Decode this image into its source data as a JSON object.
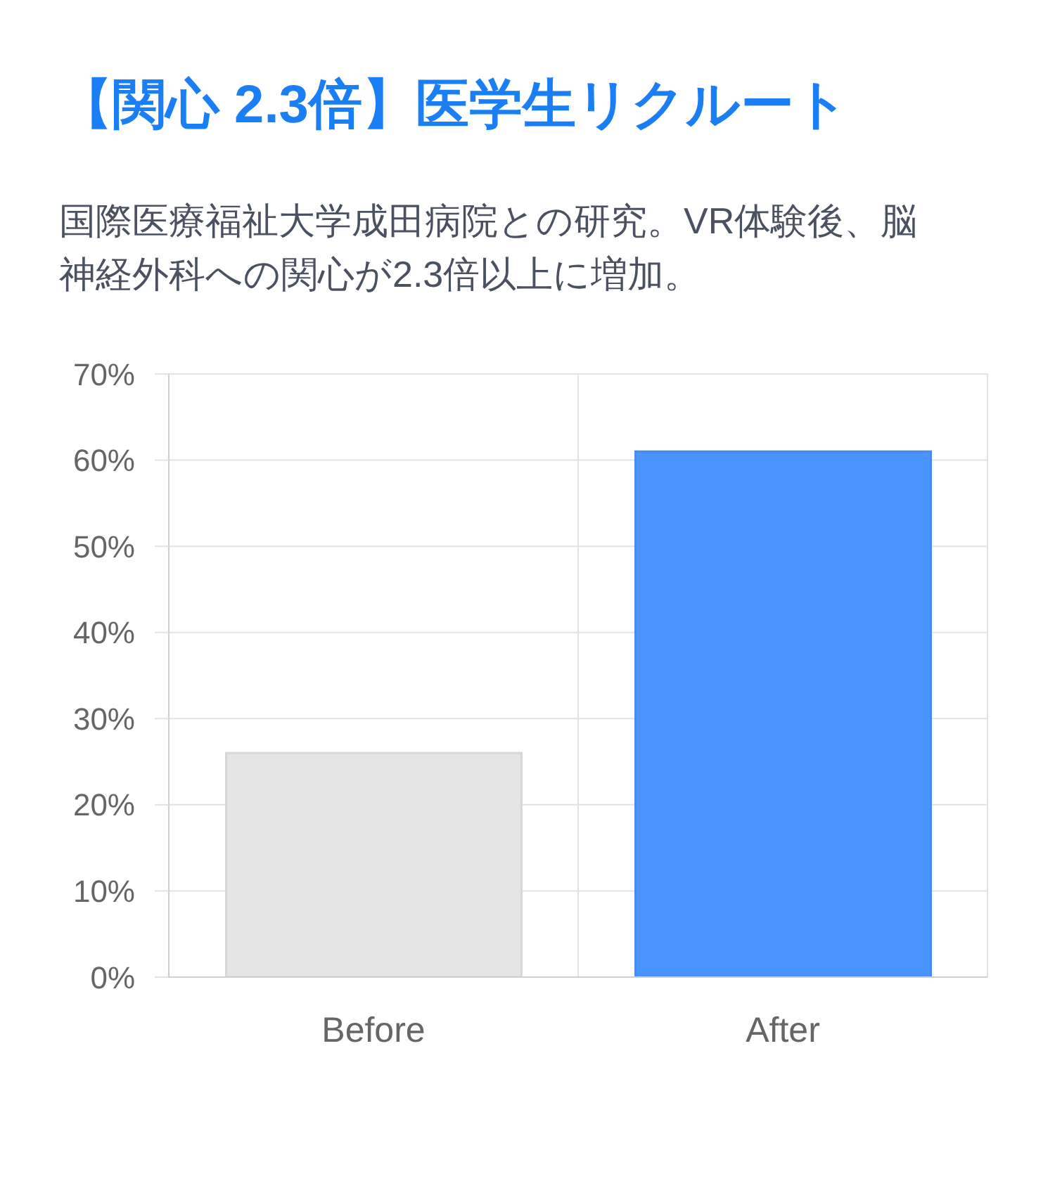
{
  "chart_data": {
    "type": "bar",
    "title": "【関心 2.3倍】医学生リクルート",
    "subtitle": "国際医療福祉大学成田病院との研究。VR体験後、脳神経外科への関心が2.3倍以上に増加。",
    "categories": [
      "Before",
      "After"
    ],
    "values": [
      26,
      61
    ],
    "colors": [
      "#e5e5e5",
      "#4a94ff"
    ],
    "ylim": [
      0,
      70
    ],
    "yticks": [
      {
        "value": 0,
        "label": "0%"
      },
      {
        "value": 10,
        "label": "10%"
      },
      {
        "value": 20,
        "label": "20%"
      },
      {
        "value": 30,
        "label": "30%"
      },
      {
        "value": 40,
        "label": "40%"
      },
      {
        "value": 50,
        "label": "50%"
      },
      {
        "value": 60,
        "label": "60%"
      },
      {
        "value": 70,
        "label": "70%"
      }
    ],
    "grid": true
  }
}
